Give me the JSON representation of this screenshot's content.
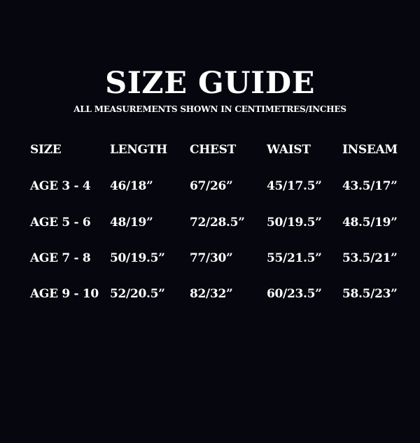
{
  "title": "SIZE GUIDE",
  "subtitle": "ALL MEASUREMENTS SHOWN IN CENTIMETRES/INCHES",
  "table": {
    "headers": [
      "SIZE",
      "LENGTH",
      "CHEST",
      "WAIST",
      "INSEAM"
    ],
    "rows": [
      [
        "AGE 3 - 4",
        "46/18”",
        "67/26”",
        "45/17.5”",
        "43.5/17”"
      ],
      [
        "AGE 5 - 6",
        "48/19”",
        "72/28.5”",
        "50/19.5”",
        "48.5/19”"
      ],
      [
        "AGE 7 - 8",
        "50/19.5”",
        "77/30”",
        "55/21.5”",
        "53.5/21”"
      ],
      [
        "AGE 9 - 10",
        "52/20.5”",
        "82/32”",
        "60/23.5”",
        "58.5/23”"
      ]
    ]
  },
  "colors": {
    "background": "#06060e",
    "text": "#ffffff"
  }
}
